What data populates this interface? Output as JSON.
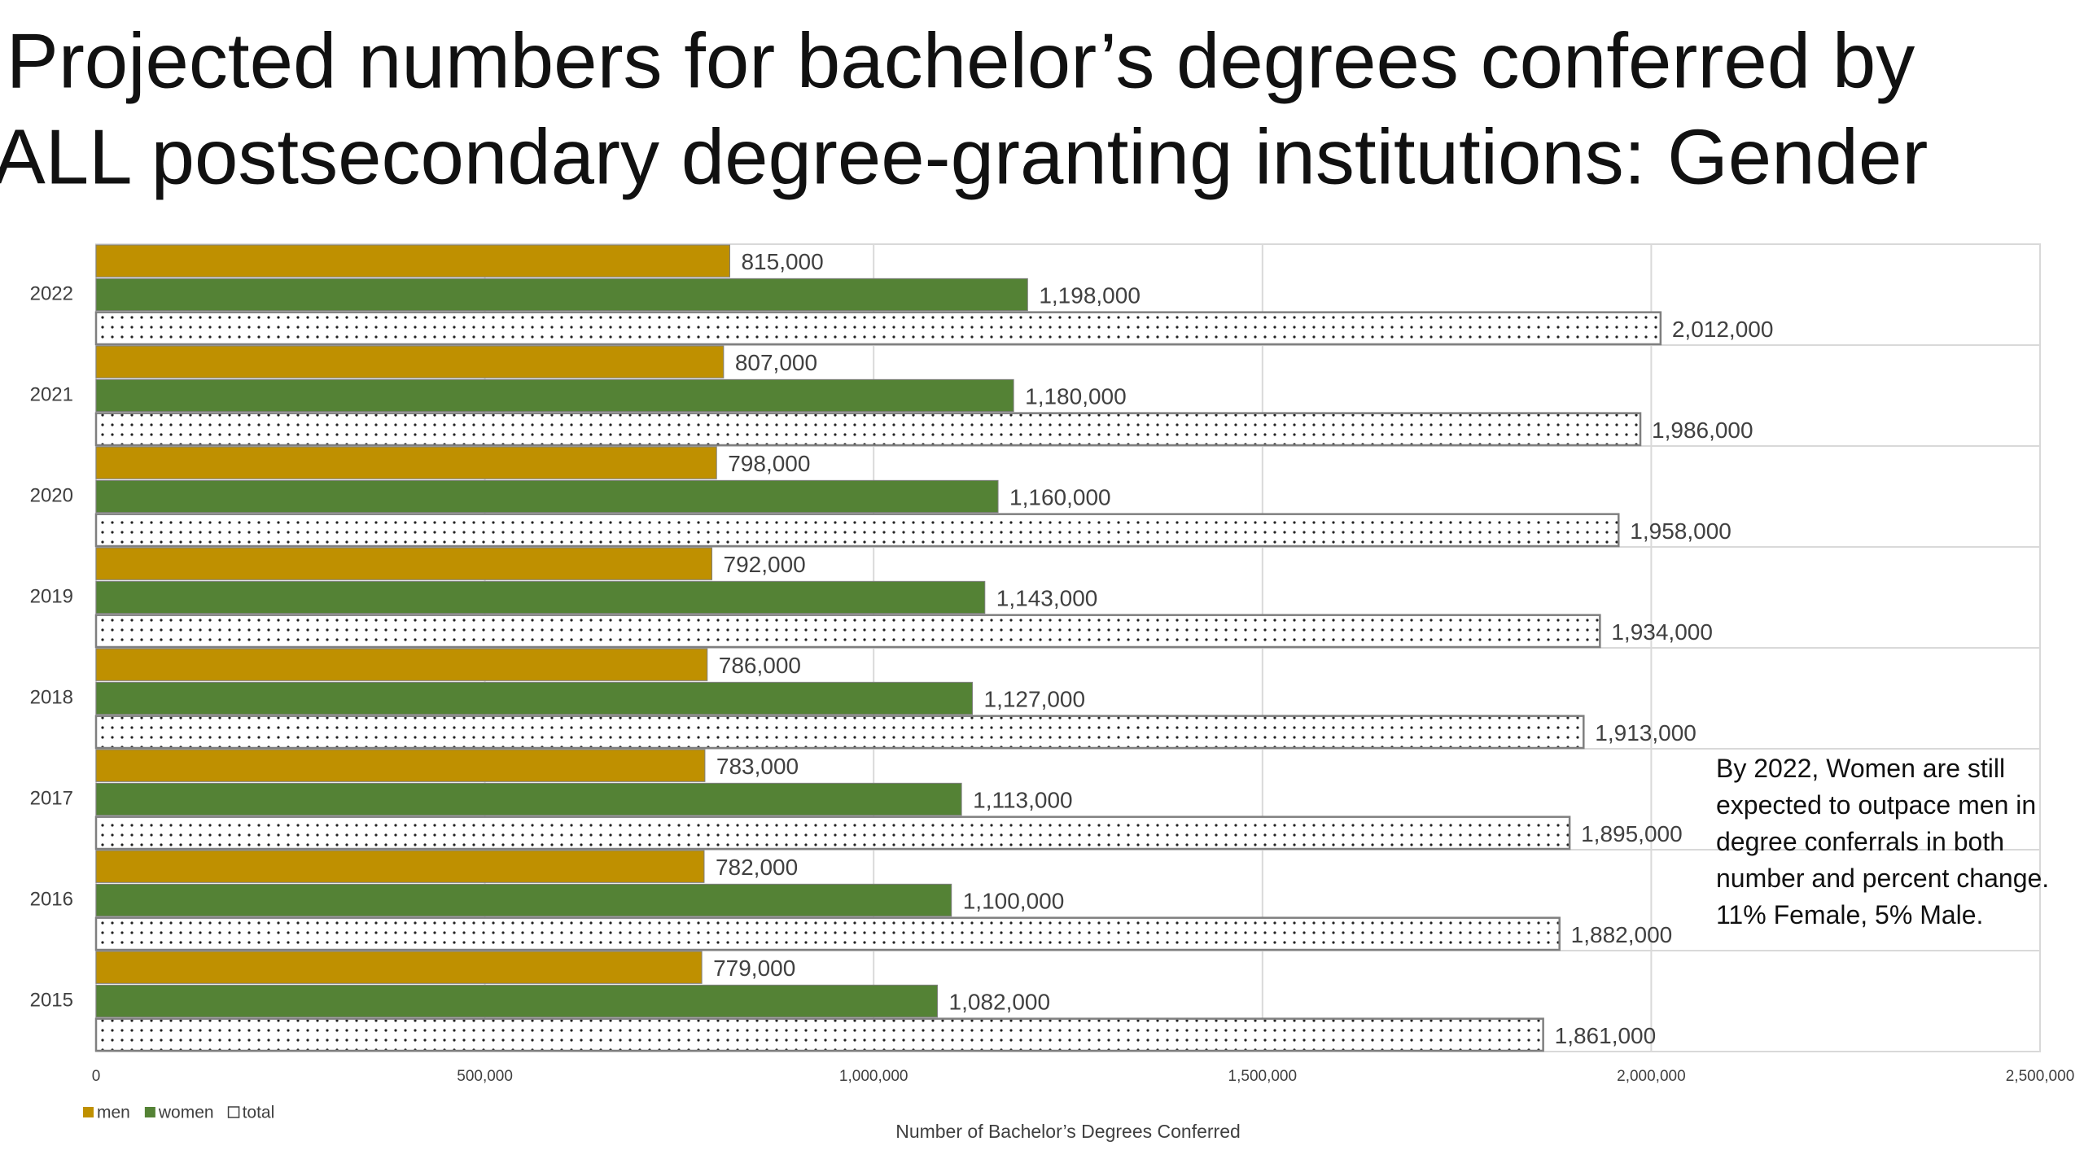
{
  "chart_data": {
    "type": "bar",
    "orientation": "horizontal",
    "title": [
      "Projected numbers for bachelor’s degrees conferred by",
      "ALL postsecondary degree-granting institutions: Gender"
    ],
    "categories": [
      "2022",
      "2021",
      "2020",
      "2019",
      "2018",
      "2017",
      "2016",
      "2015"
    ],
    "series": [
      {
        "name": "men",
        "color": "#bf9000",
        "values": [
          815000,
          807000,
          798000,
          792000,
          786000,
          783000,
          782000,
          779000
        ],
        "value_labels": [
          "815,000",
          "807,000",
          "798,000",
          "792,000",
          "786,000",
          "783,000",
          "782,000",
          "779,000"
        ]
      },
      {
        "name": "women",
        "color": "#548235",
        "values": [
          1198000,
          1180000,
          1160000,
          1143000,
          1127000,
          1113000,
          1100000,
          1082000
        ],
        "value_labels": [
          "1,198,000",
          "1,180,000",
          "1,160,000",
          "1,143,000",
          "1,127,000",
          "1,113,000",
          "1,100,000",
          "1,082,000"
        ]
      },
      {
        "name": "total",
        "color": "#ffffff",
        "pattern": "dots",
        "values": [
          2012000,
          1986000,
          1958000,
          1934000,
          1913000,
          1895000,
          1882000,
          1861000
        ],
        "value_labels": [
          "2,012,000",
          "1,986,000",
          "1,958,000",
          "1,934,000",
          "1,913,000",
          "1,895,000",
          "1,882,000",
          "1,861,000"
        ]
      }
    ],
    "xlim": [
      0,
      2500000
    ],
    "xticks": [
      0,
      {
        "value": 500000,
        "label": "500,000"
      },
      {
        "value": 1000000,
        "label": "1,000,000"
      },
      {
        "value": 1500000,
        "label": "1,500,000"
      },
      {
        "value": 2000000,
        "label": "2,000,000"
      },
      {
        "value": 2500000,
        "label": "2,500,000"
      }
    ],
    "xlabel": "Number of Bachelor’s Degrees Conferred",
    "grid": true,
    "legend": "bottom-left",
    "annotation": "By 2022, Women are still expected to outpace men in degree conferrals in both number and percent change. 11% Female, 5% Male."
  }
}
